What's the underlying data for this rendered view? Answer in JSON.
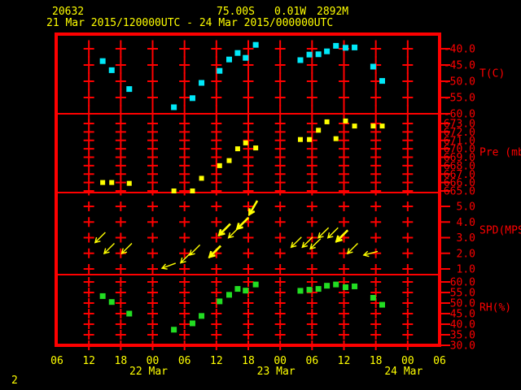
{
  "header": {
    "station_id": "20632",
    "latitude": "75.00S",
    "longitude": "0.01W",
    "elevation": "2892M",
    "period": "21 Mar 2015/120000UTC - 24 Mar 2015/000000UTC"
  },
  "footer": {
    "page_number": "2"
  },
  "colors": {
    "background": "#000000",
    "grid_red": "#ff0000",
    "label_yellow": "#ffff00",
    "temperature_marker": "#00e8f8",
    "pressure_marker": "#ffff00",
    "wind_arrow": "#ffff00",
    "rh_marker": "#22dd22"
  },
  "chart_data": {
    "type": "meteogram",
    "x_axis": {
      "range_hours": [
        0,
        72
      ],
      "tick_step_hours": 6,
      "hour_labels": [
        "06",
        "12",
        "18",
        "00",
        "06",
        "12",
        "18",
        "00",
        "06",
        "12",
        "18",
        "00",
        "06"
      ],
      "date_labels": [
        {
          "label": "22 Mar",
          "hour_index": 3
        },
        {
          "label": "23 Mar",
          "hour_index": 7
        },
        {
          "label": "24 Mar",
          "hour_index": 11
        }
      ]
    },
    "panels": [
      {
        "type": "scatter",
        "name": "temperature",
        "unit_label": "T(C)",
        "marker": "square",
        "marker_color": "#00e8f8",
        "y_ticks": [
          {
            "v": -40,
            "label": "-40.0"
          },
          {
            "v": -45,
            "label": "-45.0"
          },
          {
            "v": -50,
            "label": "-50.0"
          },
          {
            "v": -55,
            "label": "-55.0"
          },
          {
            "v": -60,
            "label": "-60.0"
          }
        ],
        "points": [
          [
            8.6,
            -43.8
          ],
          [
            10.3,
            -46.6
          ],
          [
            13.6,
            -52.4
          ],
          [
            22,
            -58
          ],
          [
            25.5,
            -55.2
          ],
          [
            27.2,
            -50.5
          ],
          [
            30.6,
            -46.8
          ],
          [
            32.4,
            -43.3
          ],
          [
            34,
            -41.3
          ],
          [
            35.5,
            -42.8
          ],
          [
            37.4,
            -38.8
          ],
          [
            45.8,
            -43.5
          ],
          [
            47.5,
            -41.8
          ],
          [
            49.2,
            -41.7
          ],
          [
            50.8,
            -40.8
          ],
          [
            52.5,
            -39.1
          ],
          [
            54.3,
            -39.7
          ],
          [
            56,
            -39.6
          ],
          [
            59.5,
            -45.5
          ],
          [
            61.2,
            -49.9
          ]
        ]
      },
      {
        "type": "scatter",
        "name": "pressure",
        "unit_label": "Pre (mb)",
        "marker": "square",
        "marker_color": "#ffff00",
        "y_ticks": [
          {
            "v": 673,
            "label": "673.0"
          },
          {
            "v": 672,
            "label": "672.0"
          },
          {
            "v": 671,
            "label": "671.0"
          },
          {
            "v": 670,
            "label": "670.0"
          },
          {
            "v": 669,
            "label": "669.0"
          },
          {
            "v": 668,
            "label": "668.0"
          },
          {
            "v": 667,
            "label": "667.0"
          },
          {
            "v": 666,
            "label": "666.0"
          },
          {
            "v": 665,
            "label": "665.0"
          }
        ],
        "points": [
          [
            8.6,
            666
          ],
          [
            10.3,
            666
          ],
          [
            13.6,
            665.9
          ],
          [
            22,
            665
          ],
          [
            25.5,
            665
          ],
          [
            27.2,
            666.5
          ],
          [
            30.6,
            668
          ],
          [
            32.4,
            668.6
          ],
          [
            34,
            670
          ],
          [
            35.5,
            670.7
          ],
          [
            37.4,
            670.1
          ],
          [
            45.8,
            671.1
          ],
          [
            47.5,
            671.1
          ],
          [
            49.2,
            672.2
          ],
          [
            50.8,
            673.2
          ],
          [
            52.5,
            671.2
          ],
          [
            54.3,
            673.3
          ],
          [
            56,
            672.7
          ],
          [
            59.5,
            672.7
          ],
          [
            61.2,
            672.7
          ]
        ]
      },
      {
        "type": "wind-arrows",
        "name": "wind-speed",
        "unit_label": "SPD(MPS)",
        "marker_color": "#ffff00",
        "y_ticks": [
          {
            "v": 5,
            "label": "5.0"
          },
          {
            "v": 4,
            "label": "4.0"
          },
          {
            "v": 3,
            "label": "3.0"
          },
          {
            "v": 2,
            "label": "2.0"
          },
          {
            "v": 1,
            "label": "1.0"
          }
        ],
        "points": [
          {
            "t": 8.1,
            "v": 3.0,
            "dir": 135,
            "bold": false
          },
          {
            "t": 9.8,
            "v": 2.3,
            "dir": 135,
            "bold": false
          },
          {
            "t": 13.1,
            "v": 2.3,
            "dir": 135,
            "bold": false
          },
          {
            "t": 21.0,
            "v": 1.2,
            "dir": 160,
            "bold": false
          },
          {
            "t": 24.2,
            "v": 1.7,
            "dir": 135,
            "bold": false
          },
          {
            "t": 25.9,
            "v": 2.2,
            "dir": 135,
            "bold": false
          },
          {
            "t": 29.7,
            "v": 2.1,
            "dir": 135,
            "bold": true
          },
          {
            "t": 31.5,
            "v": 3.5,
            "dir": 135,
            "bold": true
          },
          {
            "t": 33.2,
            "v": 3.3,
            "dir": 135,
            "bold": false
          },
          {
            "t": 34.9,
            "v": 3.9,
            "dir": 135,
            "bold": true
          },
          {
            "t": 36.9,
            "v": 4.9,
            "dir": 120,
            "bold": true
          },
          {
            "t": 45.0,
            "v": 2.7,
            "dir": 135,
            "bold": false
          },
          {
            "t": 47.1,
            "v": 2.7,
            "dir": 135,
            "bold": false
          },
          {
            "t": 48.6,
            "v": 2.6,
            "dir": 135,
            "bold": false
          },
          {
            "t": 50.1,
            "v": 3.3,
            "dir": 135,
            "bold": false
          },
          {
            "t": 51.9,
            "v": 3.3,
            "dir": 135,
            "bold": false
          },
          {
            "t": 53.6,
            "v": 3.1,
            "dir": 135,
            "bold": true
          },
          {
            "t": 55.6,
            "v": 2.3,
            "dir": 135,
            "bold": false
          },
          {
            "t": 59.0,
            "v": 2.0,
            "dir": 165,
            "bold": false
          }
        ]
      },
      {
        "type": "scatter",
        "name": "relative-humidity",
        "unit_label": "RH(%)",
        "marker": "square",
        "marker_color": "#22dd22",
        "y_ticks": [
          {
            "v": 60,
            "label": "60.0"
          },
          {
            "v": 55,
            "label": "55.0"
          },
          {
            "v": 50,
            "label": "50.0"
          },
          {
            "v": 45,
            "label": "45.0"
          },
          {
            "v": 40,
            "label": "40.0"
          },
          {
            "v": 35,
            "label": "35.0"
          },
          {
            "v": 30,
            "label": "30.0"
          }
        ],
        "points": [
          [
            8.6,
            53.3
          ],
          [
            10.3,
            50.5
          ],
          [
            13.6,
            45
          ],
          [
            22,
            37.4
          ],
          [
            25.5,
            40.4
          ],
          [
            27.2,
            43.9
          ],
          [
            30.6,
            50.8
          ],
          [
            32.4,
            53.9
          ],
          [
            34,
            56.7
          ],
          [
            35.5,
            55.9
          ],
          [
            37.4,
            58.8
          ],
          [
            45.8,
            55.8
          ],
          [
            47.5,
            56.3
          ],
          [
            49.2,
            56.7
          ],
          [
            50.8,
            58.2
          ],
          [
            52.5,
            58.8
          ],
          [
            54.3,
            57.5
          ],
          [
            56,
            57.9
          ],
          [
            59.5,
            52.5
          ],
          [
            61.2,
            49.2
          ]
        ]
      }
    ]
  }
}
